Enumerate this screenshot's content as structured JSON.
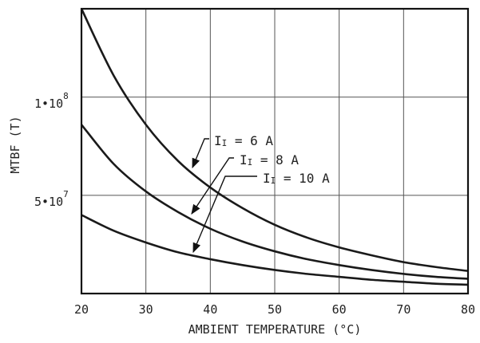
{
  "chart_data": {
    "type": "line",
    "title": "",
    "xlabel": "AMBIENT TEMPERATURE (°C)",
    "ylabel": "MTBF (T)",
    "xlim": [
      20,
      80
    ],
    "ylim": [
      0,
      145000000
    ],
    "x_ticks": [
      20,
      30,
      40,
      50,
      60,
      70,
      80
    ],
    "y_ticks": [
      {
        "value": 50000000,
        "base": "5•10",
        "exp": "7"
      },
      {
        "value": 100000000,
        "base": "1•10",
        "exp": "8"
      }
    ],
    "grid": true,
    "x": [
      20,
      25,
      30,
      35,
      40,
      45,
      50,
      55,
      60,
      65,
      70,
      75,
      80
    ],
    "series": [
      {
        "label_main": "I",
        "label_sub": "I",
        "label_value": " = 6 A",
        "values": [
          145000000,
          111000000,
          86000000,
          67500000,
          54000000,
          43500000,
          35000000,
          28500000,
          23500000,
          19500000,
          16000000,
          13500000,
          11500000
        ]
      },
      {
        "label_main": "I",
        "label_sub": "I",
        "label_value": " = 8 A",
        "values": [
          86000000,
          66000000,
          52000000,
          41500000,
          33000000,
          26500000,
          21500000,
          17500000,
          14500000,
          12000000,
          10000000,
          8500000,
          7500000
        ]
      },
      {
        "label_main": "I",
        "label_sub": "I",
        "label_value": " = 10 A",
        "values": [
          40000000,
          32000000,
          26000000,
          21000000,
          17500000,
          14500000,
          12000000,
          10000000,
          8500000,
          7000000,
          6000000,
          5000000,
          4500000
        ]
      }
    ]
  }
}
